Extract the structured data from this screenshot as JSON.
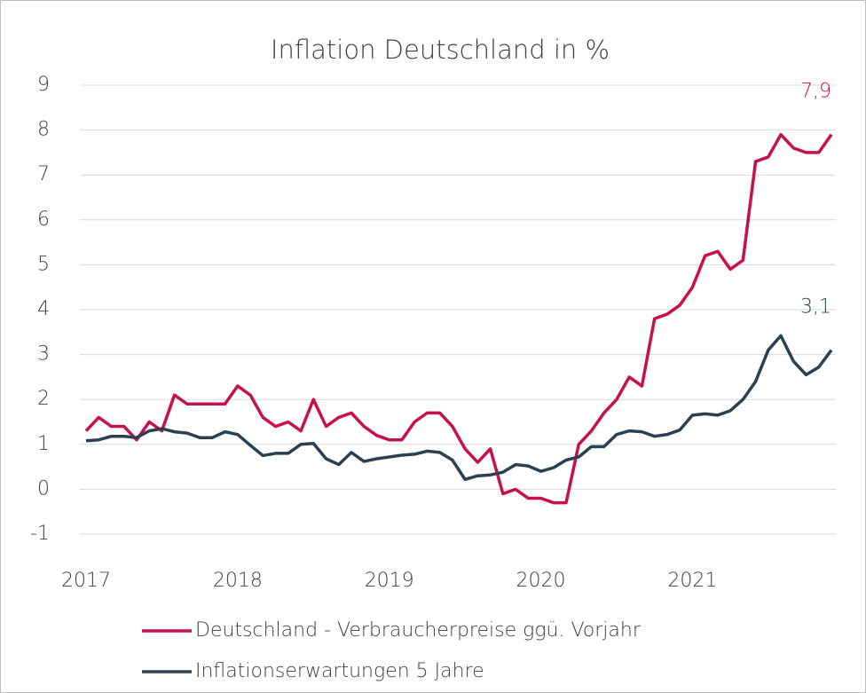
{
  "chart_data": {
    "type": "line",
    "title": "Inflation Deutschland in %",
    "categories": [
      "2017",
      null,
      null,
      null,
      null,
      null,
      null,
      null,
      null,
      null,
      null,
      null,
      "2018",
      null,
      null,
      null,
      null,
      null,
      null,
      null,
      null,
      null,
      null,
      null,
      "2019",
      null,
      null,
      null,
      null,
      null,
      null,
      null,
      null,
      null,
      null,
      null,
      "2020",
      null,
      null,
      null,
      null,
      null,
      null,
      null,
      null,
      null,
      null,
      null,
      "2021",
      null,
      null,
      null,
      null,
      null,
      null,
      null,
      null,
      null,
      null,
      null
    ],
    "series": [
      {
        "name": "Deutschland - Verbraucherpreise ggü. Vorjahr",
        "color": "#c8104e",
        "end_label": "7,9",
        "values": [
          1.3,
          1.6,
          1.4,
          1.4,
          1.1,
          1.5,
          1.3,
          2.1,
          1.9,
          1.9,
          1.9,
          1.9,
          2.3,
          2.1,
          1.6,
          1.4,
          1.5,
          1.3,
          2.0,
          1.4,
          1.6,
          1.7,
          1.4,
          1.2,
          1.1,
          1.1,
          1.5,
          1.7,
          1.7,
          1.4,
          0.9,
          0.6,
          0.9,
          -0.1,
          0.0,
          -0.2,
          -0.2,
          -0.3,
          -0.3,
          1.0,
          1.3,
          1.7,
          2.0,
          2.5,
          2.3,
          3.8,
          3.9,
          4.1,
          4.5,
          5.2,
          5.3,
          4.9,
          5.1,
          7.3,
          7.4,
          7.9,
          7.6,
          7.5,
          7.5,
          7.9
        ]
      },
      {
        "name": "Inflationserwartungen 5 Jahre",
        "color": "#2b4150",
        "end_label": "3,1",
        "values": [
          1.08,
          1.1,
          1.18,
          1.18,
          1.15,
          1.3,
          1.35,
          1.28,
          1.25,
          1.15,
          1.15,
          1.28,
          1.22,
          0.98,
          0.75,
          0.8,
          0.8,
          1.0,
          1.02,
          0.68,
          0.55,
          0.82,
          0.62,
          0.68,
          0.72,
          0.76,
          0.78,
          0.85,
          0.82,
          0.65,
          0.22,
          0.3,
          0.32,
          0.38,
          0.55,
          0.52,
          0.4,
          0.48,
          0.65,
          0.72,
          0.95,
          0.95,
          1.22,
          1.3,
          1.28,
          1.18,
          1.22,
          1.32,
          1.65,
          1.68,
          1.65,
          1.75,
          2.0,
          2.4,
          3.1,
          3.42,
          2.85,
          2.55,
          2.72,
          3.1
        ]
      }
    ],
    "ylim": [
      -1,
      9
    ],
    "yticks": [
      -1,
      0,
      1,
      2,
      3,
      4,
      5,
      6,
      7,
      8,
      9
    ],
    "grid": true
  }
}
